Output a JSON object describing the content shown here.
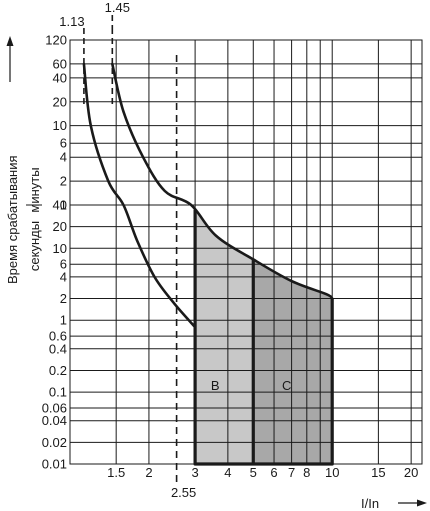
{
  "chart_data": {
    "type": "line",
    "title": "",
    "xlabel": "I/In",
    "ylabel": "Время срабатывания",
    "ylabel_minutes": "минуты",
    "ylabel_seconds": "секунды",
    "xscale": "log",
    "yscale": "log-segmented",
    "grid": true,
    "x_ticks": [
      {
        "value": 1.5,
        "label": "1.5"
      },
      {
        "value": 2,
        "label": "2"
      },
      {
        "value": 3,
        "label": "3"
      },
      {
        "value": 4,
        "label": "4"
      },
      {
        "value": 5,
        "label": "5"
      },
      {
        "value": 6,
        "label": "6"
      },
      {
        "value": 7,
        "label": "7"
      },
      {
        "value": 8,
        "label": "8"
      },
      {
        "value": 10,
        "label": "10"
      },
      {
        "value": 15,
        "label": "15"
      },
      {
        "value": 20,
        "label": "20"
      }
    ],
    "x_grid_values": [
      1.5,
      2,
      3,
      4,
      5,
      6,
      7,
      8,
      9,
      10,
      15,
      20
    ],
    "xlim": [
      1,
      22
    ],
    "y_minutes_ticks": [
      {
        "value": 120,
        "label": "120"
      },
      {
        "value": 60,
        "label": "60"
      },
      {
        "value": 40,
        "label": "40"
      },
      {
        "value": 20,
        "label": "20"
      },
      {
        "value": 10,
        "label": "10"
      },
      {
        "value": 6,
        "label": "6"
      },
      {
        "value": 4,
        "label": "4"
      },
      {
        "value": 2,
        "label": "2"
      },
      {
        "value": 1,
        "label": "1"
      }
    ],
    "y_seconds_ticks": [
      {
        "value": 40,
        "label": "40"
      },
      {
        "value": 20,
        "label": "20"
      },
      {
        "value": 10,
        "label": "10"
      },
      {
        "value": 6,
        "label": "6"
      },
      {
        "value": 4,
        "label": "4"
      },
      {
        "value": 2,
        "label": "2"
      },
      {
        "value": 1,
        "label": "1"
      },
      {
        "value": 0.6,
        "label": "0.6"
      },
      {
        "value": 0.4,
        "label": "0.4"
      },
      {
        "value": 0.2,
        "label": "0.2"
      },
      {
        "value": 0.1,
        "label": "0.1"
      },
      {
        "value": 0.06,
        "label": "0.06"
      },
      {
        "value": 0.04,
        "label": "0.04"
      },
      {
        "value": 0.02,
        "label": "0.02"
      },
      {
        "value": 0.01,
        "label": "0.01"
      }
    ],
    "reference_lines": [
      {
        "x": 1.13,
        "label": "1.13",
        "style": "dashed"
      },
      {
        "x": 1.45,
        "label": "1.45",
        "style": "dashed"
      },
      {
        "x": 2.55,
        "label": "2.55",
        "style": "dashed"
      }
    ],
    "series": [
      {
        "name": "",
        "points": [
          {
            "x": 1.13,
            "unit": "min",
            "y": 60
          },
          {
            "x": 1.2,
            "unit": "min",
            "y": 10
          },
          {
            "x": 1.4,
            "unit": "min",
            "y": 2
          },
          {
            "x": 1.6,
            "unit": "s",
            "y": 40
          },
          {
            "x": 1.8,
            "unit": "s",
            "y": 13
          },
          {
            "x": 2.1,
            "unit": "s",
            "y": 4
          },
          {
            "x": 2.5,
            "unit": "s",
            "y": 1.7
          },
          {
            "x": 3.0,
            "unit": "s",
            "y": 0.8
          }
        ]
      },
      {
        "name": "",
        "points": [
          {
            "x": 1.45,
            "unit": "min",
            "y": 60
          },
          {
            "x": 1.6,
            "unit": "min",
            "y": 15
          },
          {
            "x": 1.9,
            "unit": "min",
            "y": 4
          },
          {
            "x": 2.3,
            "unit": "min",
            "y": 1.5
          },
          {
            "x": 2.9,
            "unit": "s",
            "y": 40
          },
          {
            "x": 3.6,
            "unit": "s",
            "y": 15
          },
          {
            "x": 5.0,
            "unit": "s",
            "y": 7
          },
          {
            "x": 7.0,
            "unit": "s",
            "y": 3.5
          },
          {
            "x": 9.5,
            "unit": "s",
            "y": 2.3
          },
          {
            "x": 10,
            "unit": "s",
            "y": 2
          }
        ]
      }
    ],
    "regions": [
      {
        "label": "B",
        "x_start": 3,
        "x_end": 5,
        "y_bottom": 0.01
      },
      {
        "label": "C",
        "x_start": 5,
        "x_end": 10,
        "y_bottom": 0.01
      }
    ],
    "colors": {
      "region_b": "#c8c8c8",
      "region_c": "#a8a8a8",
      "line": "#1a1a1a"
    }
  }
}
